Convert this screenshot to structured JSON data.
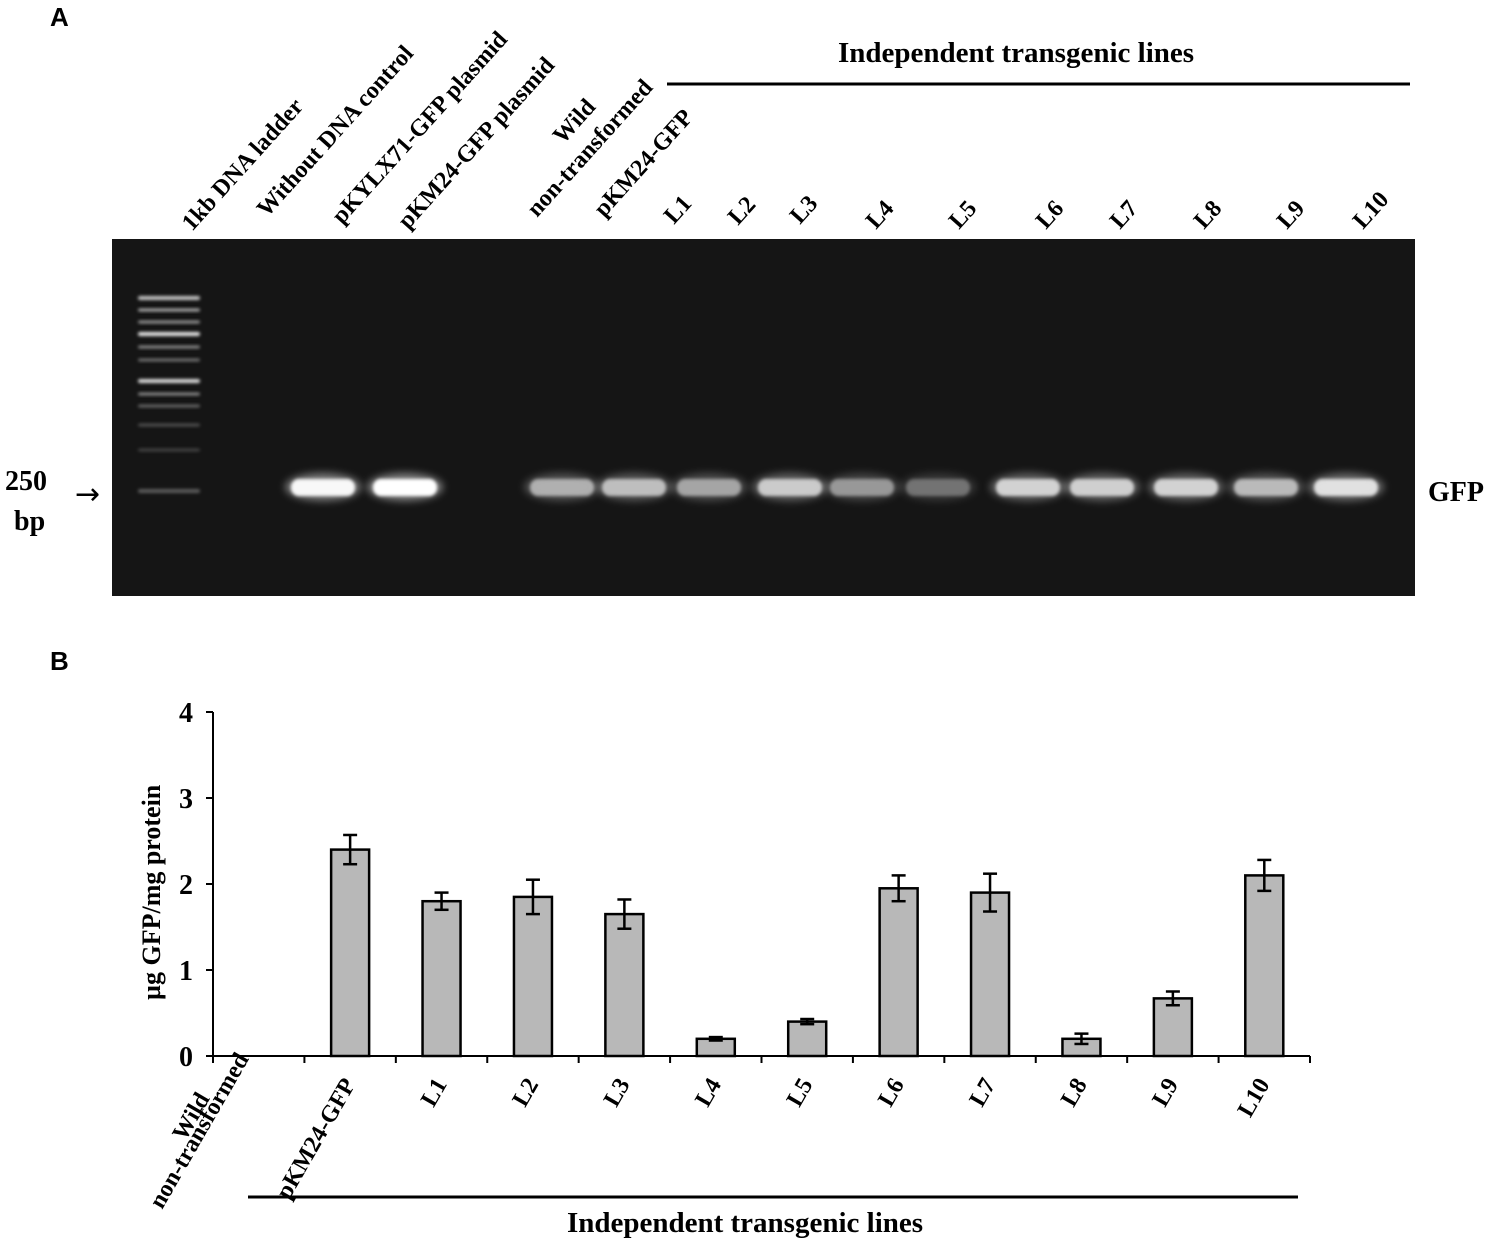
{
  "panel_a": {
    "letter": "A",
    "group_label": "Independent transgenic lines",
    "lane_labels": [
      "1kb DNA ladder",
      "Without DNA control",
      "pKYLX71-GFP plasmid",
      "pKM24-GFP plasmid",
      "Wild",
      "non-transformed",
      "pKM24-GFP",
      "L1",
      "L2",
      "L3",
      "L4",
      "L5",
      "L6",
      "L7",
      "L8",
      "L9",
      "L10"
    ],
    "marker_value": "250",
    "marker_unit": "bp",
    "marker_arrow": "→",
    "band_label": "GFP",
    "band_intensity": [
      0,
      0.95,
      1.0,
      0,
      0.55,
      0.62,
      0.5,
      0.68,
      0.45,
      0.3,
      0.72,
      0.7,
      0.72,
      0.6,
      0.8
    ],
    "colors": {
      "gel_background": "#151515",
      "band": "#ffffff"
    }
  },
  "panel_b": {
    "letter": "B",
    "group_label": "Independent transgenic lines",
    "chart_data": {
      "type": "bar",
      "categories": [
        "Wild non-transformed",
        "pKM24-GFP",
        "L1",
        "L2",
        "L3",
        "L4",
        "L5",
        "L6",
        "L7",
        "L8",
        "L9",
        "L10"
      ],
      "category_lines": [
        [
          "Wild",
          "non-transformed"
        ],
        [
          "pKM24-GFP"
        ],
        [
          "L1"
        ],
        [
          "L2"
        ],
        [
          "L3"
        ],
        [
          "L4"
        ],
        [
          "L5"
        ],
        [
          "L6"
        ],
        [
          "L7"
        ],
        [
          "L8"
        ],
        [
          "L9"
        ],
        [
          "L10"
        ]
      ],
      "values": [
        0,
        2.4,
        1.8,
        1.85,
        1.65,
        0.2,
        0.4,
        1.95,
        1.9,
        0.2,
        0.67,
        2.1
      ],
      "errors": [
        0,
        0.17,
        0.1,
        0.2,
        0.17,
        0.02,
        0.03,
        0.15,
        0.22,
        0.06,
        0.08,
        0.18
      ],
      "ylabel": "µg GFP/mg protein",
      "ylim": [
        0,
        4
      ],
      "yticks": [
        "0",
        "1",
        "2",
        "3",
        "4"
      ],
      "grid": false,
      "colors": {
        "bar": "#b8b8b8",
        "outline": "#000000"
      }
    }
  }
}
